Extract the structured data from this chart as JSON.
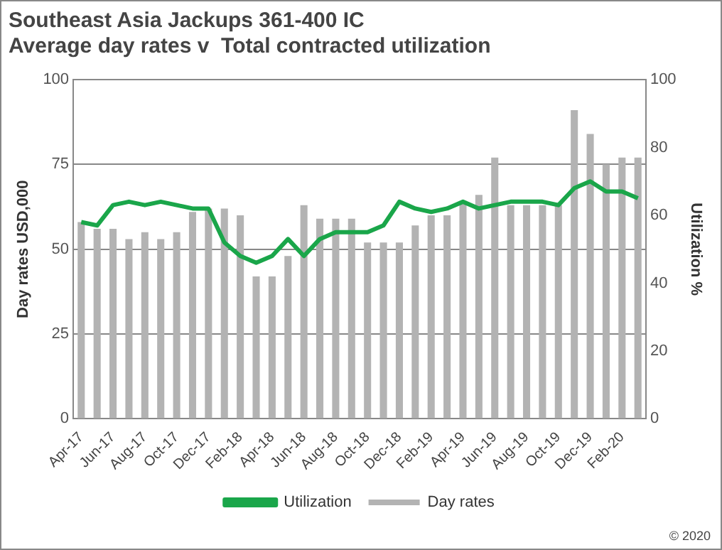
{
  "chart_data": {
    "type": "bar",
    "title": "Southeast Asia Jackups 361-400 IC",
    "subtitle": "Average day rates v  Total contracted utilization",
    "ylabel": "Day rates USD,000",
    "y2label": "Utilization %",
    "categories": [
      "Apr-17",
      null,
      "Jun-17",
      null,
      "Aug-17",
      null,
      "Oct-17",
      null,
      "Dec-17",
      null,
      "Feb-18",
      null,
      "Apr-18",
      null,
      "Jun-18",
      null,
      "Aug-18",
      null,
      "Oct-18",
      null,
      "Dec-18",
      null,
      "Feb-19",
      null,
      "Apr-19",
      null,
      "Jun-19",
      null,
      "Aug-19",
      null,
      "Oct-19",
      null,
      "Dec-19",
      null,
      "Feb-20",
      null
    ],
    "series": [
      {
        "name": "Day rates",
        "color": "#b3b3b3",
        "values": [
          58,
          56,
          56,
          53,
          55,
          53,
          55,
          61,
          62,
          62,
          60,
          42,
          42,
          48,
          63,
          59,
          59,
          59,
          52,
          52,
          52,
          57,
          60,
          60,
          64,
          66,
          77,
          63,
          63,
          63,
          63,
          91,
          84,
          75,
          77,
          77
        ]
      },
      {
        "name": "Utilization",
        "type": "line",
        "axis": "y2",
        "color": "#1aa64a",
        "values": [
          58,
          57,
          63,
          64,
          63,
          64,
          63,
          62,
          62,
          52,
          48,
          46,
          48,
          53,
          48,
          53,
          55,
          55,
          55,
          57,
          64,
          62,
          61,
          62,
          64,
          62,
          63,
          64,
          64,
          64,
          63,
          68,
          70,
          67,
          67,
          65
        ]
      }
    ],
    "ylim": [
      0,
      100
    ],
    "yticks": [
      0,
      25,
      50,
      75,
      100
    ],
    "y2lim": [
      0,
      100
    ],
    "y2ticks": [
      0,
      20,
      40,
      60,
      80,
      100
    ],
    "grid": "y",
    "legend": "bottom",
    "marker": "none",
    "line_style": "solid",
    "annotations": [
      "© 2020"
    ]
  }
}
